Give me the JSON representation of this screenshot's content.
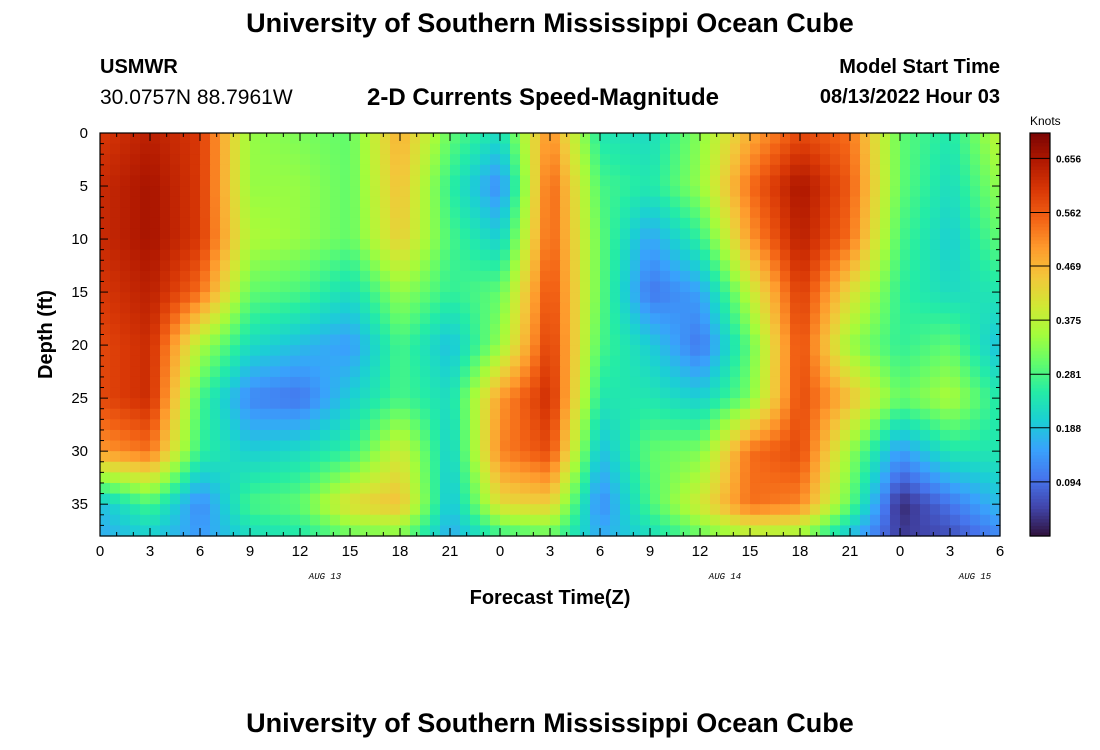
{
  "header": {
    "title": "University of Southern Mississippi Ocean Cube",
    "station": "USMWR",
    "coords": "30.0757N  88.7961W",
    "subtitle": "2-D Currents Speed-Magnitude",
    "model_start_label": "Model Start Time",
    "model_start_value": "08/13/2022 Hour 03"
  },
  "footer": {
    "title": "University of Southern Mississippi Ocean Cube"
  },
  "colors": {
    "colormap": [
      "#30123b",
      "#4145ab",
      "#4675ed",
      "#39a2fc",
      "#1bcfd4",
      "#24eca6",
      "#61fc6c",
      "#a4fc3b",
      "#d1e834",
      "#f3c63a",
      "#fe9b2d",
      "#f36315",
      "#d93806",
      "#b11901",
      "#7a0402"
    ]
  },
  "chart_data": {
    "type": "heatmap",
    "title": "2-D Currents Speed-Magnitude",
    "xlabel": "Forecast Time(Z)",
    "ylabel": "Depth (ft)",
    "x_tick_labels": [
      "0",
      "3",
      "6",
      "9",
      "12",
      "15",
      "18",
      "21",
      "0",
      "3",
      "6",
      "9",
      "12",
      "15",
      "18",
      "21",
      "0",
      "3",
      "6"
    ],
    "date_labels": [
      "AUG 13",
      "AUG 14",
      "AUG 15"
    ],
    "y_ticks": [
      0,
      5,
      10,
      15,
      20,
      25,
      30,
      35
    ],
    "y_range": [
      0,
      38
    ],
    "colorbar": {
      "label": "Knots",
      "ticks": [
        0.656,
        0.562,
        0.469,
        0.375,
        0.281,
        0.188,
        0.094
      ],
      "range": [
        0.0,
        0.7
      ]
    },
    "grid": {
      "hours": [
        0,
        3,
        6,
        9,
        12,
        15,
        18,
        21,
        24,
        27,
        30,
        33,
        36,
        39,
        42,
        45,
        48,
        51,
        54
      ],
      "depths": [
        0,
        5,
        10,
        15,
        20,
        25,
        30,
        35,
        38
      ],
      "values": [
        [
          0.6,
          0.64,
          0.6,
          0.34,
          0.32,
          0.3,
          0.48,
          0.3,
          0.22,
          0.52,
          0.24,
          0.22,
          0.33,
          0.48,
          0.58,
          0.54,
          0.3,
          0.24,
          0.38
        ],
        [
          0.62,
          0.66,
          0.6,
          0.34,
          0.34,
          0.3,
          0.46,
          0.26,
          0.12,
          0.56,
          0.28,
          0.24,
          0.34,
          0.54,
          0.66,
          0.56,
          0.3,
          0.22,
          0.34
        ],
        [
          0.62,
          0.66,
          0.6,
          0.36,
          0.34,
          0.3,
          0.44,
          0.28,
          0.2,
          0.56,
          0.3,
          0.15,
          0.26,
          0.5,
          0.64,
          0.54,
          0.28,
          0.2,
          0.3
        ],
        [
          0.6,
          0.64,
          0.54,
          0.3,
          0.28,
          0.22,
          0.34,
          0.26,
          0.3,
          0.58,
          0.3,
          0.1,
          0.15,
          0.38,
          0.6,
          0.42,
          0.26,
          0.22,
          0.24
        ],
        [
          0.58,
          0.62,
          0.36,
          0.22,
          0.18,
          0.14,
          0.28,
          0.18,
          0.34,
          0.6,
          0.28,
          0.2,
          0.1,
          0.3,
          0.58,
          0.34,
          0.26,
          0.3,
          0.18
        ],
        [
          0.58,
          0.62,
          0.28,
          0.12,
          0.1,
          0.2,
          0.28,
          0.22,
          0.5,
          0.62,
          0.24,
          0.24,
          0.2,
          0.32,
          0.58,
          0.46,
          0.3,
          0.36,
          0.24
        ],
        [
          0.5,
          0.54,
          0.26,
          0.2,
          0.22,
          0.26,
          0.4,
          0.2,
          0.52,
          0.58,
          0.18,
          0.3,
          0.32,
          0.54,
          0.58,
          0.34,
          0.14,
          0.24,
          0.24
        ],
        [
          0.18,
          0.28,
          0.12,
          0.28,
          0.3,
          0.42,
          0.46,
          0.18,
          0.42,
          0.44,
          0.12,
          0.28,
          0.4,
          0.54,
          0.52,
          0.3,
          0.02,
          0.1,
          0.18
        ],
        [
          0.16,
          0.2,
          0.14,
          0.22,
          0.24,
          0.3,
          0.32,
          0.16,
          0.26,
          0.3,
          0.16,
          0.22,
          0.3,
          0.36,
          0.34,
          0.18,
          0.04,
          0.06,
          0.12
        ]
      ]
    }
  }
}
